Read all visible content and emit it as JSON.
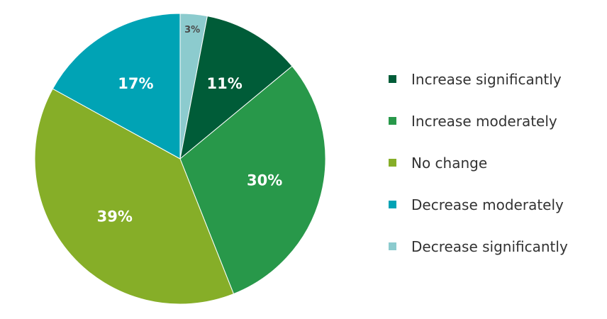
{
  "chart_data": {
    "type": "pie",
    "categories": [
      "Increase significantly",
      "Increase moderately",
      "No change",
      "Decrease moderately",
      "Decrease significantly"
    ],
    "values": [
      11,
      30,
      39,
      17,
      3
    ],
    "value_labels": [
      "11%",
      "30%",
      "39%",
      "17%",
      "3%"
    ],
    "colors": [
      "#005c38",
      "#28984a",
      "#86ae28",
      "#00a3b5",
      "#8ccbce"
    ],
    "legend_position": "right",
    "slice_order": "clockwise from top, starting with Decrease significantly",
    "title": ""
  },
  "legend": {
    "items": [
      {
        "label": "Increase significantly",
        "color": "#005c38"
      },
      {
        "label": "Increase moderately",
        "color": "#28984a"
      },
      {
        "label": "No change",
        "color": "#86ae28"
      },
      {
        "label": "Decrease moderately",
        "color": "#00a3b5"
      },
      {
        "label": "Decrease significantly",
        "color": "#8ccbce"
      }
    ]
  }
}
